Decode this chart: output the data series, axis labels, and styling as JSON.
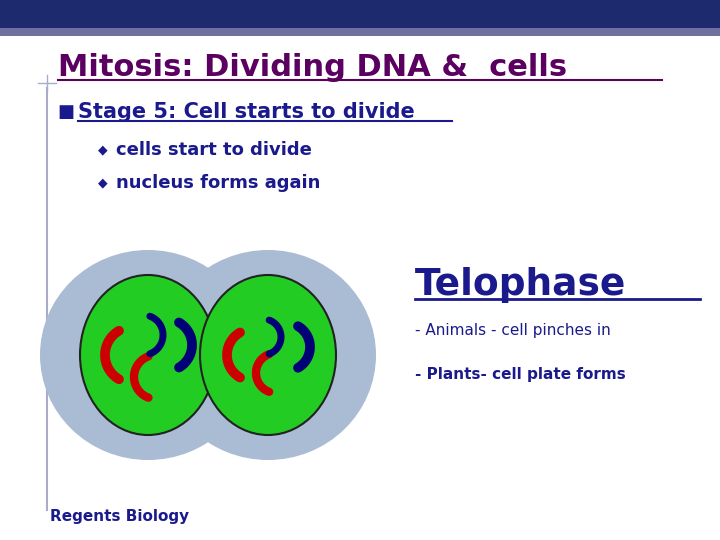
{
  "title": "Mitosis: Dividing DNA &  cells",
  "title_color": "#5B0060",
  "header_bar_color": "#1E2A6E",
  "header_bar2_color": "#7070A0",
  "stage_text": "Stage 5: Cell starts to divide",
  "stage_color": "#1A1A8C",
  "bullet1": "cells start to divide",
  "bullet2": "nucleus forms again",
  "bullet_color": "#1A1A8C",
  "telophase_text": "Telophase",
  "telophase_color": "#1A1A8C",
  "animals_text": "- Animals - cell pinches in",
  "plants_text": "- Plants- cell plate forms",
  "annot_color": "#1A1A8C",
  "regents_text": "Regents Biology",
  "regents_color": "#1A1A8C",
  "outer_cell_color": "#AABBD4",
  "inner_nucleus_color": "#22CC22",
  "chromosome_red": "#CC0000",
  "chromosome_blue": "#000077",
  "bg_color": "#FFFFFF"
}
